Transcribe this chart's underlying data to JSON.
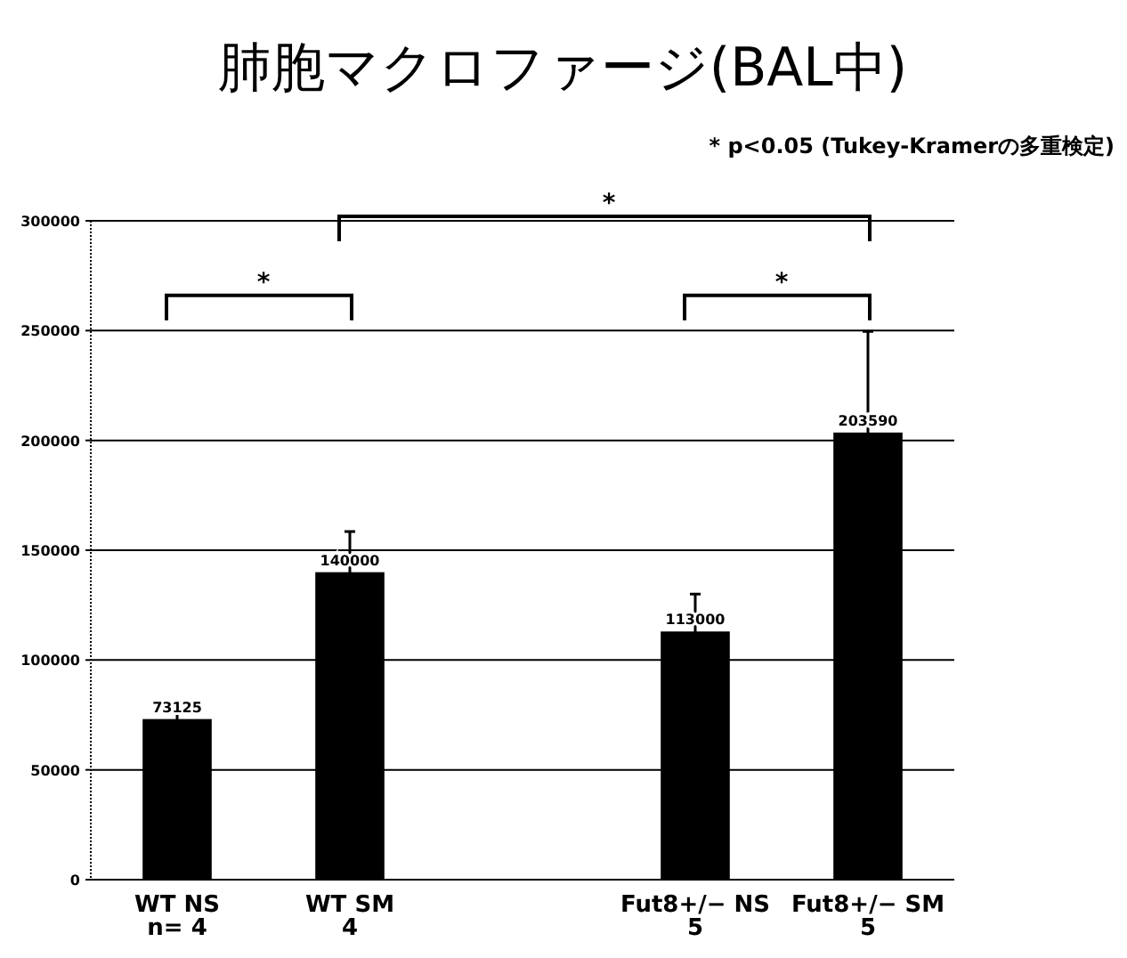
{
  "chart_data": {
    "type": "bar",
    "title": "肺胞マクロファージ(BAL中)",
    "annotations": [
      "* p<0.05 (Tukey-Kramerの多重検定)",
      "*",
      "*",
      "*"
    ],
    "categories": [
      "WT NS\nn= 4",
      "WT SM\n4",
      null,
      "Fut8+/− NS\n5",
      "Fut8+/− SM\n5"
    ],
    "values": [
      73125,
      140000,
      null,
      113000,
      203590
    ],
    "errors": [
      3000,
      18500,
      null,
      17000,
      46000
    ],
    "color": "#000000",
    "data_labels": true,
    "grid": "y",
    "ylim": [
      0,
      300000
    ],
    "yticks": [
      0,
      50000,
      100000,
      150000,
      200000,
      250000,
      300000
    ]
  }
}
